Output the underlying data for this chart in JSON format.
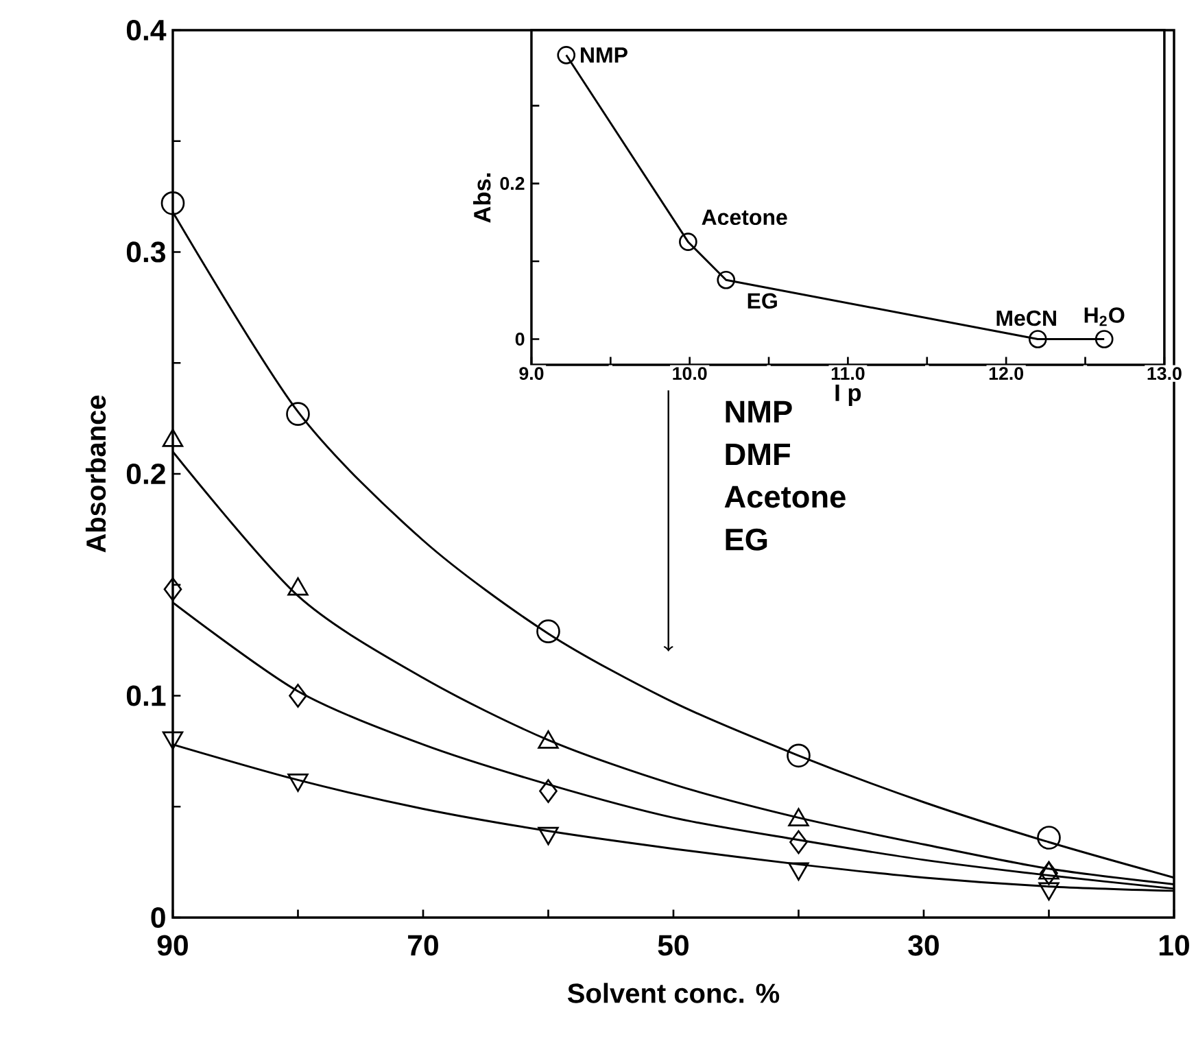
{
  "chart_data": [
    {
      "type": "scatter",
      "xlabel": "Solvent conc. %",
      "ylabel": "Absorbance",
      "xlim": [
        90,
        10
      ],
      "ylim": [
        0,
        0.4
      ],
      "xticks": [
        90,
        {
          "value": 80,
          "label": null
        },
        70,
        {
          "value": 60,
          "label": null
        },
        50,
        {
          "value": 40,
          "label": null
        },
        30,
        {
          "value": 20,
          "label": null
        },
        10
      ],
      "yticks": [
        0,
        {
          "value": 0.05,
          "label": null
        },
        0.1,
        {
          "value": 0.15,
          "label": null
        },
        0.2,
        {
          "value": 0.25,
          "label": null
        },
        0.3,
        {
          "value": 0.35,
          "label": null
        },
        0.4
      ],
      "annotations": [
        "NMP",
        "DMF",
        "Acetone",
        "EG"
      ],
      "series": [
        {
          "type": "line",
          "marker": "none",
          "color": "#000000",
          "x": [
            90,
            80,
            70,
            60,
            50,
            40,
            30,
            20,
            10
          ],
          "values": [
            0.318,
            0.228,
            0.17,
            0.128,
            0.097,
            0.073,
            0.052,
            0.034,
            0.018
          ]
        },
        {
          "type": "line",
          "marker": "none",
          "color": "#000000",
          "x": [
            90,
            80,
            70,
            60,
            50,
            40,
            30,
            20,
            10
          ],
          "values": [
            0.21,
            0.145,
            0.108,
            0.08,
            0.06,
            0.045,
            0.033,
            0.022,
            0.015
          ]
        },
        {
          "type": "line",
          "marker": "none",
          "color": "#000000",
          "x": [
            90,
            80,
            70,
            60,
            50,
            40,
            30,
            20,
            10
          ],
          "values": [
            0.142,
            0.102,
            0.078,
            0.06,
            0.045,
            0.035,
            0.026,
            0.019,
            0.013
          ]
        },
        {
          "type": "line",
          "marker": "none",
          "color": "#000000",
          "x": [
            90,
            80,
            70,
            60,
            50,
            40,
            30,
            20,
            10
          ],
          "values": [
            0.078,
            0.062,
            0.049,
            0.039,
            0.031,
            0.024,
            0.018,
            0.014,
            0.012
          ]
        },
        {
          "type": "scatter",
          "marker": "circle",
          "color": "#000000",
          "x": [
            90,
            80,
            60,
            40,
            20
          ],
          "values": [
            0.322,
            0.227,
            0.129,
            0.073,
            0.036
          ]
        },
        {
          "type": "scatter",
          "marker": "triangle",
          "color": "#000000",
          "x": [
            90,
            80,
            60,
            40,
            20
          ],
          "values": [
            0.215,
            0.148,
            0.079,
            0.044,
            0.02
          ]
        },
        {
          "type": "scatter",
          "marker": "diamond",
          "color": "#000000",
          "x": [
            90,
            80,
            60,
            40,
            20
          ],
          "values": [
            0.148,
            0.1,
            0.057,
            0.034,
            0.02
          ]
        },
        {
          "type": "scatter",
          "marker": "triangle-down",
          "color": "#000000",
          "x": [
            90,
            80,
            60,
            40,
            20
          ],
          "values": [
            0.081,
            0.062,
            0.038,
            0.022,
            0.013
          ]
        }
      ]
    },
    {
      "type": "line",
      "marker": "circle",
      "xlabel": "I p",
      "ylabel": "Abs.",
      "xlim": [
        9,
        13
      ],
      "ylim": [
        -0.033,
        0.397
      ],
      "xticks": [
        {
          "value": 9,
          "label": "9.0"
        },
        {
          "value": 9.5,
          "label": null
        },
        {
          "value": 10,
          "label": "10.0"
        },
        {
          "value": 10.5,
          "label": null
        },
        {
          "value": 11,
          "label": "11.0"
        },
        {
          "value": 11.5,
          "label": null
        },
        {
          "value": 12,
          "label": "12.0"
        },
        {
          "value": 12.5,
          "label": null
        },
        {
          "value": 13,
          "label": "13.0"
        }
      ],
      "yticks": [
        0,
        {
          "value": 0.1,
          "label": null
        },
        0.2,
        {
          "value": 0.3,
          "label": null
        }
      ],
      "annotations": [
        {
          "text": "NMP",
          "x": 9.22,
          "y": 0.365
        },
        {
          "text": "Acetone",
          "x": 9.99,
          "y": 0.125
        },
        {
          "text": "EG",
          "x": 10.23,
          "y": 0.076
        },
        {
          "text": "MeCN",
          "x": 12.2,
          "y": 0
        },
        {
          "text": "H$_{2}$O",
          "x": 12.62,
          "y": 0
        }
      ],
      "series": [
        {
          "color": "#000000",
          "x": [
            9.22,
            9.99,
            10.23,
            12.2,
            12.62
          ],
          "values": [
            0.365,
            0.125,
            0.076,
            0.0,
            0.0
          ]
        }
      ]
    }
  ]
}
